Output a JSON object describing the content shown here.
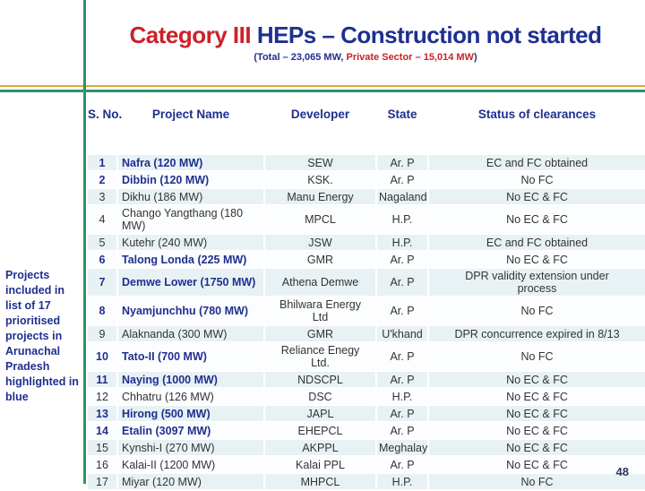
{
  "title": {
    "highlight": "Category III",
    "rest": " HEPs – Construction not started"
  },
  "subtitle": {
    "prefix": "(Total – 23,065 MW, ",
    "highlight": "Private Sector – 15,014 MW",
    "suffix": ")"
  },
  "sidebar_note": "Projects included in list of 17 prioritised projects in Arunachal Pradesh highlighted in blue",
  "page_number": "48",
  "colors": {
    "title_navy": "#1f2f8f",
    "title_red": "#cc2128",
    "row_band_azure": "#e8f2f5",
    "rule_green": "#2e9368",
    "rule_orange": "#e6a33d"
  },
  "table": {
    "headers": [
      "S. No.",
      "Project Name",
      "Developer",
      "State",
      "Status of clearances"
    ],
    "rows": [
      {
        "no": "1",
        "project": "Nafra (120 MW)",
        "developer": "SEW",
        "state": "Ar. P",
        "status": "EC and FC obtained",
        "highlighted": true
      },
      {
        "no": "2",
        "project": "Dibbin (120 MW)",
        "developer": "KSK.",
        "state": "Ar. P",
        "status": "No FC",
        "highlighted": true
      },
      {
        "no": "3",
        "project": "Dikhu (186 MW)",
        "developer": "Manu Energy",
        "state": "Nagaland",
        "status": "No EC & FC",
        "highlighted": false
      },
      {
        "no": "4",
        "project": "Chango Yangthang (180 MW)",
        "developer": "MPCL",
        "state": "H.P.",
        "status": "No EC & FC",
        "highlighted": false
      },
      {
        "no": "5",
        "project": "Kutehr (240 MW)",
        "developer": "JSW",
        "state": "H.P.",
        "status": "EC and FC obtained",
        "highlighted": false
      },
      {
        "no": "6",
        "project": "Talong Londa (225 MW)",
        "developer": "GMR",
        "state": "Ar. P",
        "status": "No EC & FC",
        "highlighted": true
      },
      {
        "no": "7",
        "project": "Demwe Lower (1750 MW)",
        "developer": "Athena Demwe",
        "state": "Ar. P",
        "status": "DPR validity extension under process",
        "highlighted": true
      },
      {
        "no": "8",
        "project": "Nyamjunchhu (780 MW)",
        "developer": "Bhilwara Energy Ltd",
        "state": "Ar. P",
        "status": "No FC",
        "highlighted": true
      },
      {
        "no": "9",
        "project": "Alaknanda (300 MW)",
        "developer": "GMR",
        "state": "U'khand",
        "status": "DPR concurrence expired in 8/13",
        "highlighted": false
      },
      {
        "no": "10",
        "project": "Tato-II (700 MW)",
        "developer": "Reliance Enegy Ltd.",
        "state": "Ar. P",
        "status": "No FC",
        "highlighted": true
      },
      {
        "no": "11",
        "project": "Naying (1000 MW)",
        "developer": "NDSCPL",
        "state": "Ar. P",
        "status": "No EC & FC",
        "highlighted": true
      },
      {
        "no": "12",
        "project": "Chhatru (126 MW)",
        "developer": "DSC",
        "state": "H.P.",
        "status": "No EC & FC",
        "highlighted": false
      },
      {
        "no": "13",
        "project": "Hirong (500 MW)",
        "developer": "JAPL",
        "state": "Ar. P",
        "status": "No EC & FC",
        "highlighted": true
      },
      {
        "no": "14",
        "project": "Etalin (3097 MW)",
        "developer": "EHEPCL",
        "state": "Ar. P",
        "status": "No EC & FC",
        "highlighted": true
      },
      {
        "no": "15",
        "project": "Kynshi-I (270 MW)",
        "developer": "AKPPL",
        "state": "Meghalaya",
        "status": "No EC & FC",
        "highlighted": false
      },
      {
        "no": "16",
        "project": "Kalai-II (1200 MW)",
        "developer": "Kalai PPL",
        "state": "Ar. P",
        "status": "No EC & FC",
        "highlighted": false
      },
      {
        "no": "17",
        "project": "Miyar (120 MW)",
        "developer": "MHPCL",
        "state": "H.P.",
        "status": "No FC",
        "highlighted": false
      }
    ]
  }
}
